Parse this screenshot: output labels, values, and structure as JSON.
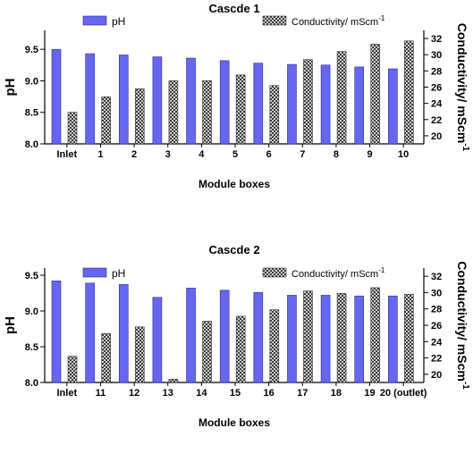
{
  "colors": {
    "ph_fill": "#6666ee",
    "ph_stroke": "#2a2aa0",
    "cond_pattern": "checkered-grey"
  },
  "chart_data": [
    {
      "type": "bar",
      "title": "Cascde 1",
      "xlabel": "Module boxes",
      "ylabel_left": "pH",
      "ylabel_right": "Conductivity/ mScm",
      "ylabel_right_sup": "-1",
      "categories": [
        "Inlet",
        "1",
        "2",
        "3",
        "4",
        "5",
        "6",
        "7",
        "8",
        "9",
        "10"
      ],
      "ylim_left": [
        8.0,
        9.8
      ],
      "ylim_right": [
        19,
        33
      ],
      "yticks_left": [
        "8.0",
        "8.5",
        "9.0",
        "9.5"
      ],
      "yticks_right": [
        "20",
        "22",
        "24",
        "26",
        "28",
        "30",
        "32"
      ],
      "legend": {
        "ph": "pH",
        "cond": "Conductivity/ mScm",
        "cond_sup": "-1",
        "placement": "top"
      },
      "series": [
        {
          "name": "pH",
          "axis": "left",
          "values": [
            9.5,
            9.43,
            9.41,
            9.38,
            9.36,
            9.32,
            9.28,
            9.26,
            9.25,
            9.22,
            9.19
          ]
        },
        {
          "name": "Conductivity/ mScm-1",
          "axis": "right",
          "values": [
            22.9,
            24.8,
            25.8,
            26.8,
            26.8,
            27.5,
            26.2,
            29.4,
            30.4,
            31.3,
            31.7
          ]
        }
      ]
    },
    {
      "type": "bar",
      "title": "Cascde 2",
      "xlabel": "Module boxes",
      "ylabel_left": "pH",
      "ylabel_right": "Conductivity/ mScm",
      "ylabel_right_sup": "-1",
      "categories": [
        "Inlet",
        "11",
        "12",
        "13",
        "14",
        "15",
        "16",
        "17",
        "18",
        "19",
        "20 (outlet)"
      ],
      "ylim_left": [
        8.0,
        9.6
      ],
      "ylim_right": [
        19,
        33
      ],
      "yticks_left": [
        "8.0",
        "8.5",
        "9.0",
        "9.5"
      ],
      "yticks_right": [
        "20",
        "22",
        "24",
        "26",
        "28",
        "30",
        "32"
      ],
      "legend": {
        "ph": "pH",
        "cond": "Conductivity/ mScm",
        "cond_sup": "-1",
        "placement": "top"
      },
      "series": [
        {
          "name": "pH",
          "axis": "left",
          "values": [
            9.42,
            9.39,
            9.37,
            9.19,
            9.32,
            9.29,
            9.26,
            9.22,
            9.22,
            9.21,
            9.21
          ]
        },
        {
          "name": "Conductivity/ mScm-1",
          "axis": "right",
          "values": [
            22.2,
            25.0,
            25.8,
            19.4,
            26.5,
            27.1,
            27.9,
            30.2,
            29.9,
            30.6,
            29.8
          ]
        }
      ]
    }
  ]
}
